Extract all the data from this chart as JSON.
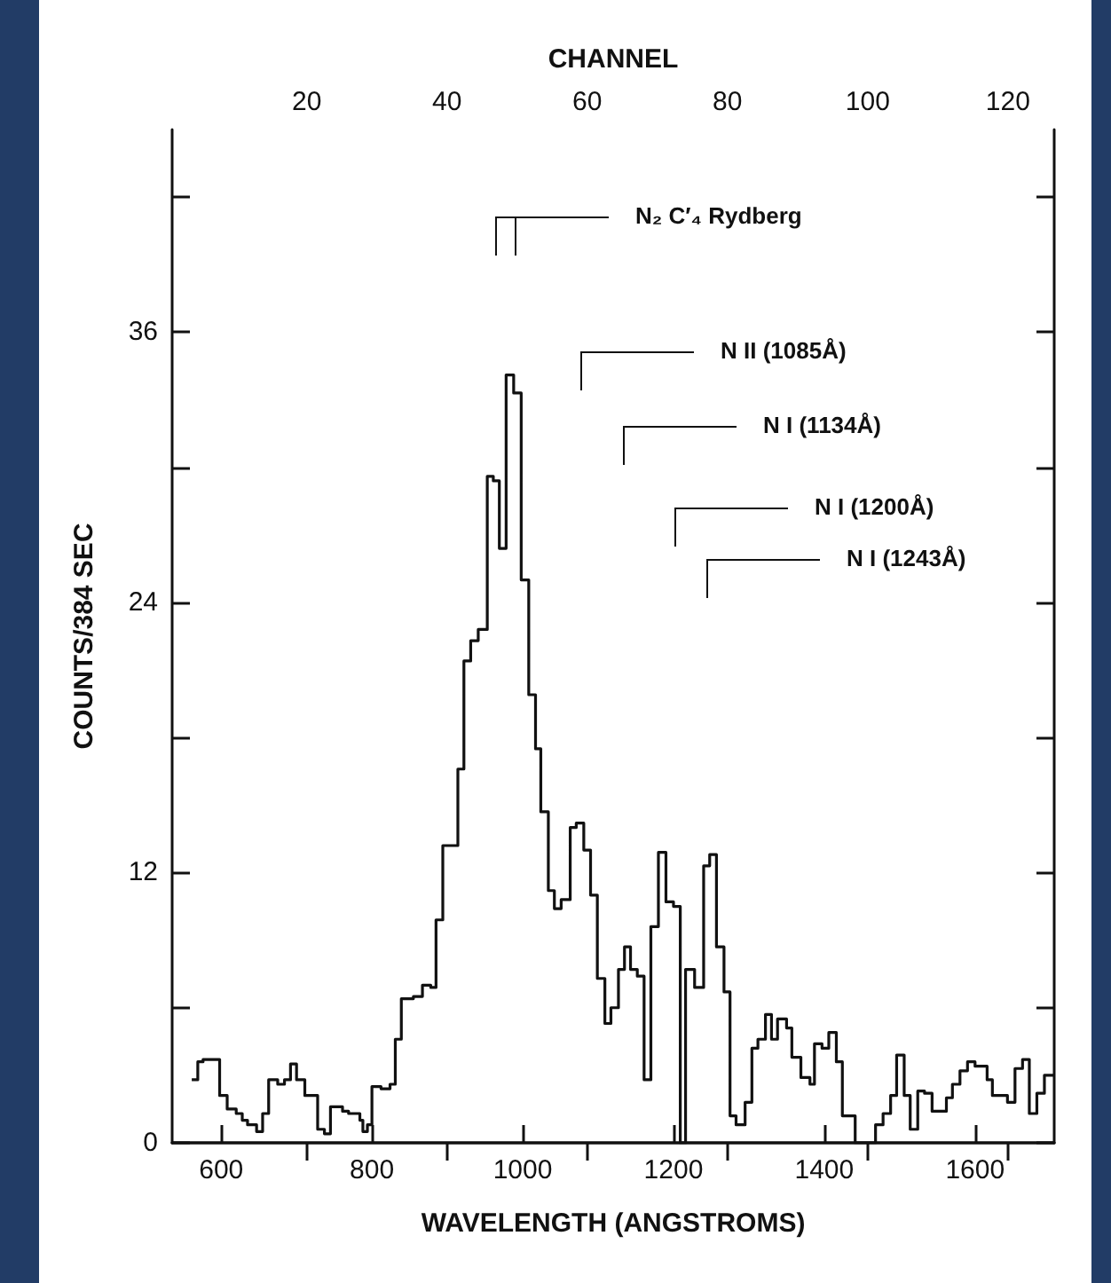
{
  "chart_data": {
    "type": "step",
    "xlabel": "WAVELENGTH (ANGSTROMS)",
    "ylabel": "COUNTS/384 SEC",
    "x2label": "CHANNEL",
    "xlim": [
      535,
      1705
    ],
    "xticks": [
      600,
      800,
      1000,
      1200,
      1400,
      1600
    ],
    "x2lim": [
      0.8,
      126.6
    ],
    "x2ticks": [
      20,
      40,
      60,
      80,
      100,
      120
    ],
    "ylim": [
      0,
      45
    ],
    "yticks": [
      0,
      {
        "value": 6,
        "label": null
      },
      12,
      {
        "value": 18,
        "label": null
      },
      24,
      {
        "value": 30,
        "label": null
      },
      36,
      {
        "value": 42,
        "label": null
      }
    ],
    "grid": false,
    "marker": "none",
    "line_style": "solid",
    "series": [
      {
        "color": "#111111",
        "x": [
          561,
          569,
          576,
          598,
          608,
          620,
          628,
          635,
          647,
          655,
          663,
          675,
          684,
          692,
          700,
          711,
          728,
          737,
          745,
          761,
          769,
          784,
          788,
          794,
          800,
          812,
          824,
          831,
          839,
          855,
          867,
          878,
          885,
          894,
          914,
          922,
          931,
          941,
          953,
          961,
          969,
          978,
          988,
          998,
          1008,
          1017,
          1024,
          1034,
          1042,
          1051,
          1063,
          1071,
          1081,
          1090,
          1099,
          1109,
          1117,
          1127,
          1135,
          1143,
          1152,
          1161,
          1170,
          1180,
          1190,
          1200,
          1209,
          1216,
          1228,
          1240,
          1248,
          1257,
          1267,
          1275,
          1283,
          1295,
          1304,
          1312,
          1322,
          1330,
          1338,
          1350,
          1357,
          1369,
          1381,
          1387,
          1397,
          1406,
          1416,
          1424,
          1441,
          1468,
          1478,
          1488,
          1496,
          1506,
          1514,
          1524,
          1533,
          1543,
          1562,
          1570,
          1580,
          1590,
          1600,
          1616,
          1623,
          1643,
          1653,
          1663,
          1672,
          1682,
          1692,
          1704
        ],
        "values": [
          2.8,
          3.6,
          3.7,
          2.1,
          1.5,
          1.3,
          1.0,
          0.8,
          0.5,
          1.3,
          2.8,
          2.6,
          2.8,
          3.5,
          2.8,
          2.1,
          0.6,
          0.4,
          1.6,
          1.4,
          1.3,
          1.0,
          0.5,
          0.8,
          2.5,
          2.4,
          2.6,
          4.6,
          6.4,
          6.5,
          7.0,
          6.9,
          9.9,
          13.2,
          16.6,
          21.4,
          22.3,
          22.8,
          29.6,
          29.4,
          26.4,
          34.1,
          33.3,
          25.0,
          19.9,
          17.5,
          14.7,
          11.2,
          10.4,
          10.8,
          14.0,
          14.2,
          13.0,
          11.0,
          7.3,
          5.3,
          6.0,
          7.7,
          8.7,
          7.7,
          7.4,
          2.8,
          9.6,
          12.9,
          10.7,
          10.5,
          0,
          7.7,
          6.9,
          12.3,
          12.8,
          8.7,
          6.7,
          1.2,
          0.8,
          1.8,
          4.2,
          4.6,
          5.7,
          4.6,
          5.5,
          5.1,
          3.8,
          2.9,
          2.6,
          4.4,
          4.2,
          4.9,
          3.6,
          1.2,
          0,
          0.8,
          1.3,
          2.1,
          3.9,
          2.1,
          0.6,
          2.3,
          2.2,
          1.4,
          2.0,
          2.6,
          3.2,
          3.6,
          3.4,
          2.8,
          2.1,
          1.8,
          3.3,
          3.7,
          1.3,
          2.2,
          3.0,
          3.0
        ]
      }
    ],
    "annotations": [
      "N₂ C′₄ Rydberg",
      "N II (1085Å)",
      "N I (1134Å)",
      "N I (1200Å)",
      "N I (1243Å)"
    ]
  }
}
